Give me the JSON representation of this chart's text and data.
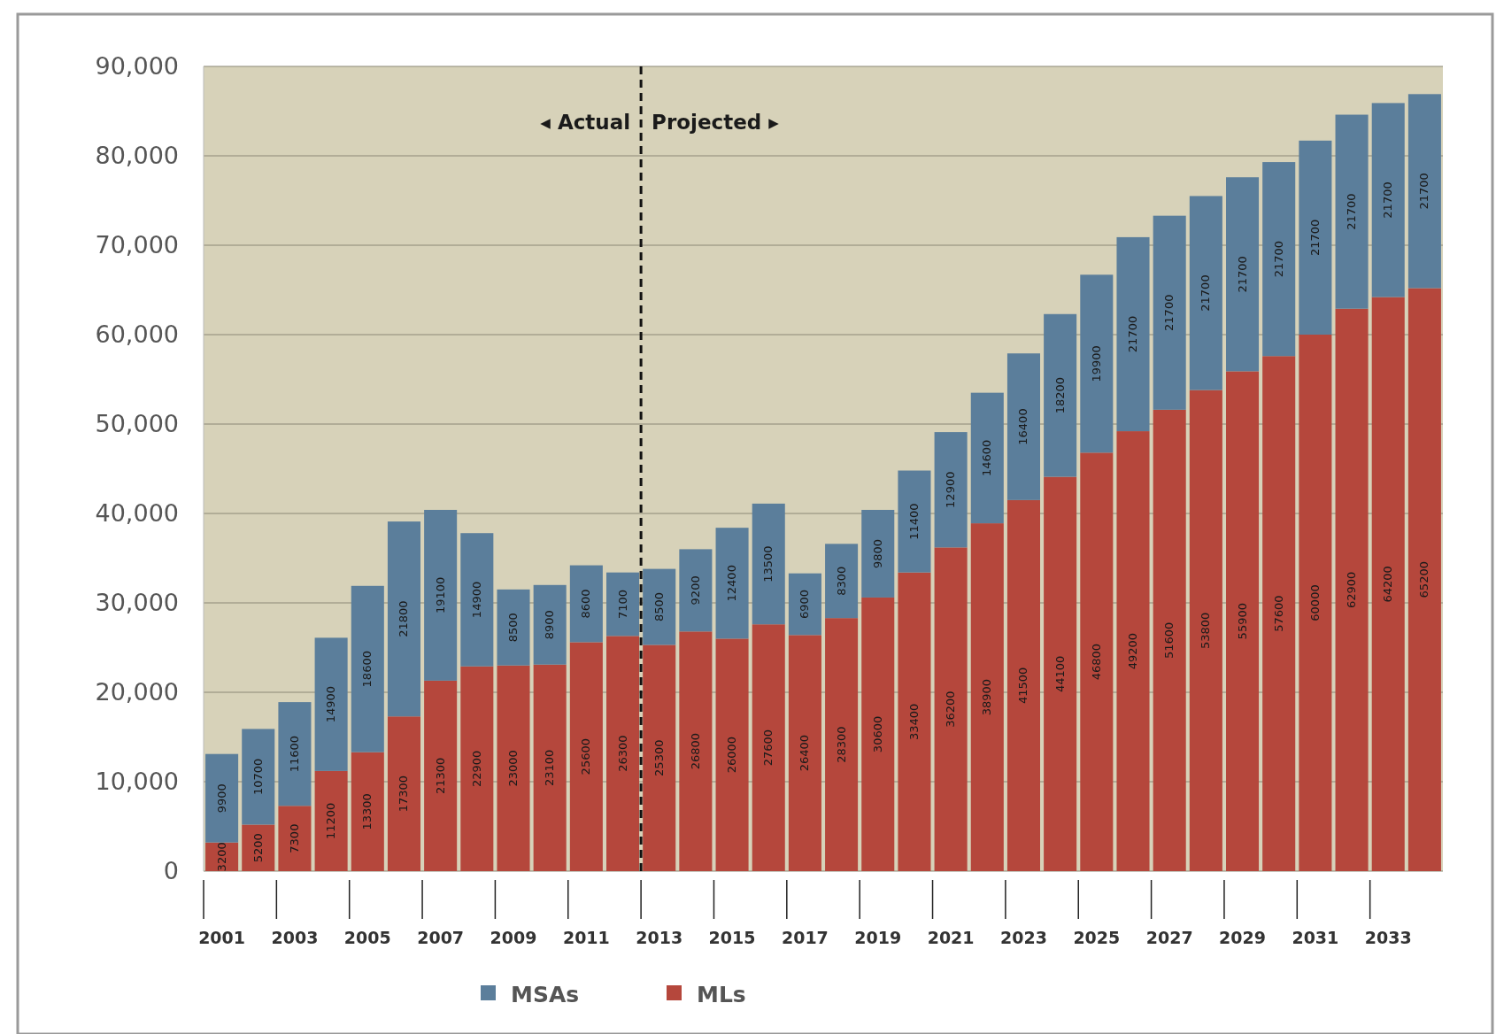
{
  "chart_data": {
    "type": "bar",
    "stacked": true,
    "x": [
      2001,
      2002,
      2003,
      2004,
      2005,
      2006,
      2007,
      2008,
      2009,
      2010,
      2011,
      2012,
      2013,
      2014,
      2015,
      2016,
      2017,
      2018,
      2019,
      2020,
      2021,
      2022,
      2023,
      2024,
      2025,
      2026,
      2027,
      2028,
      2029,
      2030,
      2031,
      2032,
      2033,
      2034
    ],
    "xlim": [
      2000.5,
      2034.5
    ],
    "xticks": [
      2001,
      2003,
      2005,
      2007,
      2009,
      2011,
      2013,
      2015,
      2017,
      2019,
      2021,
      2023,
      2025,
      2027,
      2029,
      2031,
      2033
    ],
    "ylim": [
      0,
      90000
    ],
    "yticks": [
      {
        "value": 0,
        "label": "0"
      },
      {
        "value": 10000,
        "label": "10,000"
      },
      {
        "value": 20000,
        "label": "20,000"
      },
      {
        "value": 30000,
        "label": "30,000"
      },
      {
        "value": 40000,
        "label": "40,000"
      },
      {
        "value": 50000,
        "label": "50,000"
      },
      {
        "value": 60000,
        "label": "60,000"
      },
      {
        "value": 70000,
        "label": "70,000"
      },
      {
        "value": 80000,
        "label": "80,000"
      },
      {
        "value": 90000,
        "label": "90,000"
      }
    ],
    "series": [
      {
        "name": "MLs",
        "color": "#b5473c",
        "values": [
          3200,
          5200,
          7300,
          11200,
          13300,
          17300,
          21300,
          22900,
          23000,
          23100,
          25600,
          26300,
          25300,
          26800,
          26000,
          27600,
          26400,
          28300,
          30600,
          33400,
          36200,
          38900,
          41500,
          44100,
          46800,
          49200,
          51600,
          53800,
          55900,
          57600,
          60000,
          62900,
          64200,
          65200
        ]
      },
      {
        "name": "MSAs",
        "color": "#5b7e9b",
        "values": [
          9900,
          10700,
          11600,
          14900,
          18600,
          21800,
          19100,
          14900,
          8500,
          8900,
          8600,
          7100,
          8500,
          9200,
          12400,
          13500,
          6900,
          8300,
          9800,
          11400,
          12900,
          14600,
          16400,
          18200,
          19900,
          21700,
          21700,
          21700,
          21700,
          21700,
          21700,
          21700,
          21700,
          21700
        ]
      }
    ],
    "data_labels": true,
    "grid": "y",
    "legend": "bottom",
    "ref_lines": [
      {
        "axis": "x",
        "value": 2012.5,
        "line_style": "dashed",
        "color": "#111111"
      }
    ],
    "annotations": [
      {
        "text": "◂ Actual",
        "x": 2012.5,
        "y": 83000
      },
      {
        "text": "Projected ▸",
        "x": 2012.5,
        "y": 83000
      }
    ]
  }
}
